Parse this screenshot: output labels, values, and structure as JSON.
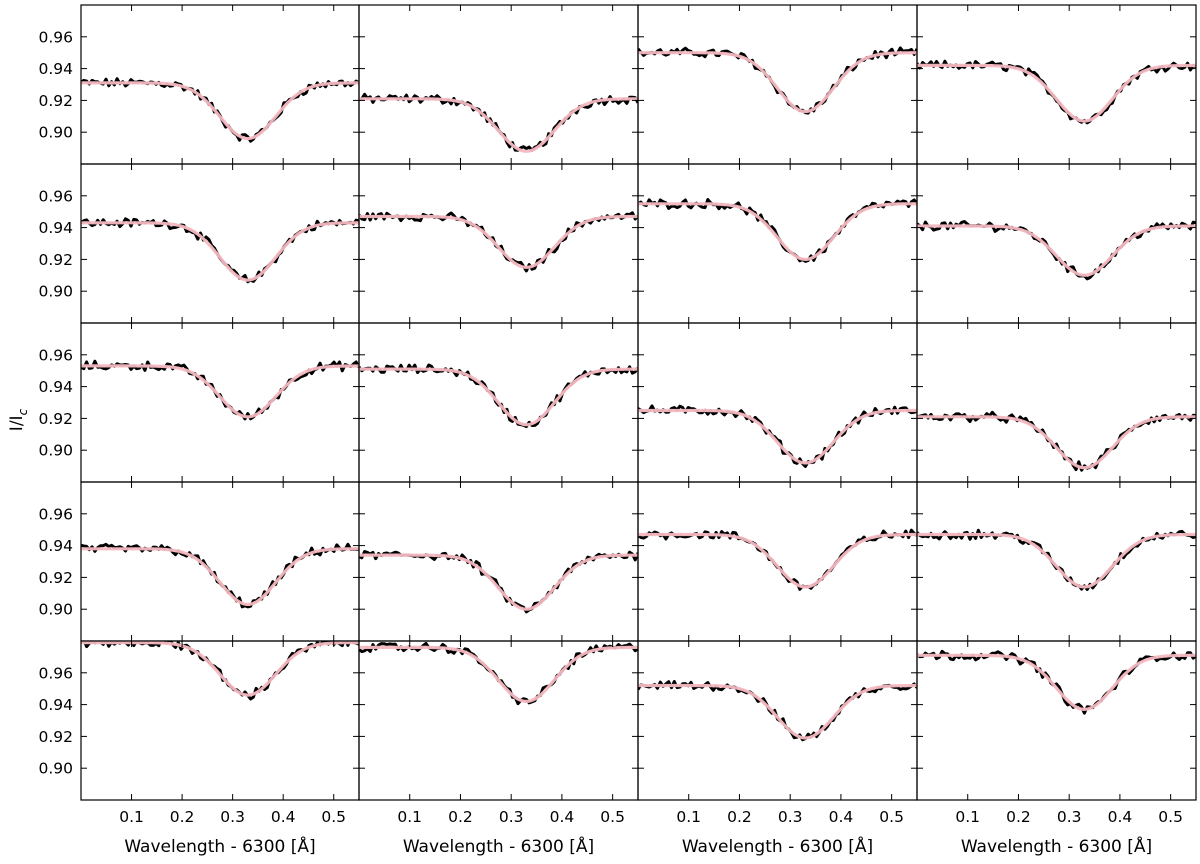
{
  "chart_data": {
    "type": "line",
    "layout": "grid of small multiples, 5 rows x 4 columns, shared axes",
    "ylabel_main": "I/I",
    "ylabel_sub": "c",
    "xlabel": "Wavelength - 6300 [Å]",
    "xlim": [
      0.0,
      0.55
    ],
    "ylim": [
      0.88,
      0.98
    ],
    "xticks": [
      "0.1",
      "0.2",
      "0.3",
      "0.4",
      "0.5"
    ],
    "yticks": [
      "0.96",
      "0.94",
      "0.92",
      "0.90"
    ],
    "series_styles": {
      "observed": {
        "color": "#000000",
        "description": "noisy observed profile"
      },
      "fit": {
        "color": "#f4b8c0",
        "description": "smooth fitted profile"
      }
    },
    "line_center": 0.33,
    "line_width": 0.055,
    "panels": [
      {
        "row": 1,
        "col": 1,
        "continuum": 0.931,
        "minimum": 0.896
      },
      {
        "row": 1,
        "col": 2,
        "continuum": 0.921,
        "minimum": 0.888
      },
      {
        "row": 1,
        "col": 3,
        "continuum": 0.95,
        "minimum": 0.913
      },
      {
        "row": 1,
        "col": 4,
        "continuum": 0.942,
        "minimum": 0.907
      },
      {
        "row": 2,
        "col": 1,
        "continuum": 0.943,
        "minimum": 0.907
      },
      {
        "row": 2,
        "col": 2,
        "continuum": 0.947,
        "minimum": 0.915
      },
      {
        "row": 2,
        "col": 3,
        "continuum": 0.955,
        "minimum": 0.92
      },
      {
        "row": 2,
        "col": 4,
        "continuum": 0.941,
        "minimum": 0.91
      },
      {
        "row": 3,
        "col": 1,
        "continuum": 0.953,
        "minimum": 0.921
      },
      {
        "row": 3,
        "col": 2,
        "continuum": 0.951,
        "minimum": 0.916
      },
      {
        "row": 3,
        "col": 3,
        "continuum": 0.925,
        "minimum": 0.892
      },
      {
        "row": 3,
        "col": 4,
        "continuum": 0.921,
        "minimum": 0.889
      },
      {
        "row": 4,
        "col": 1,
        "continuum": 0.938,
        "minimum": 0.903
      },
      {
        "row": 4,
        "col": 2,
        "continuum": 0.934,
        "minimum": 0.9
      },
      {
        "row": 4,
        "col": 3,
        "continuum": 0.947,
        "minimum": 0.914
      },
      {
        "row": 4,
        "col": 4,
        "continuum": 0.947,
        "minimum": 0.914
      },
      {
        "row": 5,
        "col": 1,
        "continuum": 0.979,
        "minimum": 0.946
      },
      {
        "row": 5,
        "col": 2,
        "continuum": 0.976,
        "minimum": 0.942
      },
      {
        "row": 5,
        "col": 3,
        "continuum": 0.952,
        "minimum": 0.919
      },
      {
        "row": 5,
        "col": 4,
        "continuum": 0.971,
        "minimum": 0.937
      }
    ]
  }
}
